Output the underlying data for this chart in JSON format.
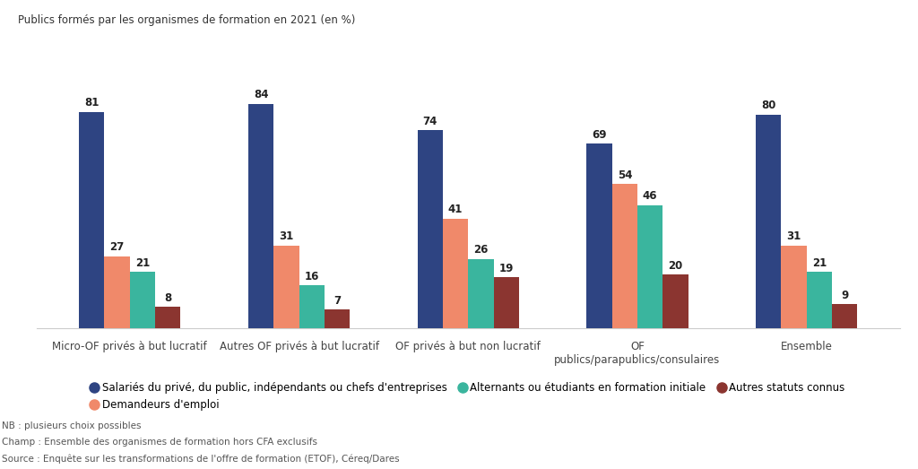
{
  "title": "Publics formés par les organismes de formation en 2021 (en %)",
  "categories": [
    "Micro-OF privés à but lucratif",
    "Autres OF privés à but lucratif",
    "OF privés à but non lucratif",
    "OF\npublics/parapublics/consulaires",
    "Ensemble"
  ],
  "series_order": [
    "Salariés du privé, du public, indépendants ou chefs d'entreprises",
    "Demandeurs d'emploi",
    "Alternants ou étudiants en formation initiale",
    "Autres statuts connus"
  ],
  "series": {
    "Salariés du privé, du public, indépendants ou chefs d'entreprises": [
      81,
      84,
      74,
      69,
      80
    ],
    "Demandeurs d'emploi": [
      27,
      31,
      41,
      54,
      31
    ],
    "Alternants ou étudiants en formation initiale": [
      21,
      16,
      26,
      46,
      21
    ],
    "Autres statuts connus": [
      8,
      7,
      19,
      20,
      9
    ]
  },
  "colors": {
    "Salariés du privé, du public, indépendants ou chefs d'entreprises": "#2e4482",
    "Demandeurs d'emploi": "#f0896a",
    "Alternants ou étudiants en formation initiale": "#3ab59e",
    "Autres statuts connus": "#8b3530"
  },
  "footnotes": [
    "NB : plusieurs choix possibles",
    "Champ : Ensemble des organismes de formation hors CFA exclusifs",
    "Source : Enquête sur les transformations de l'offre de formation (ETOF), Céreq/Dares"
  ],
  "background_color": "#ffffff",
  "bar_width": 0.15,
  "ylim": [
    0,
    100
  ],
  "value_fontsize": 8.5,
  "label_fontsize": 8.5,
  "title_fontsize": 8.5,
  "legend_fontsize": 8.5,
  "footnote_fontsize": 7.5
}
